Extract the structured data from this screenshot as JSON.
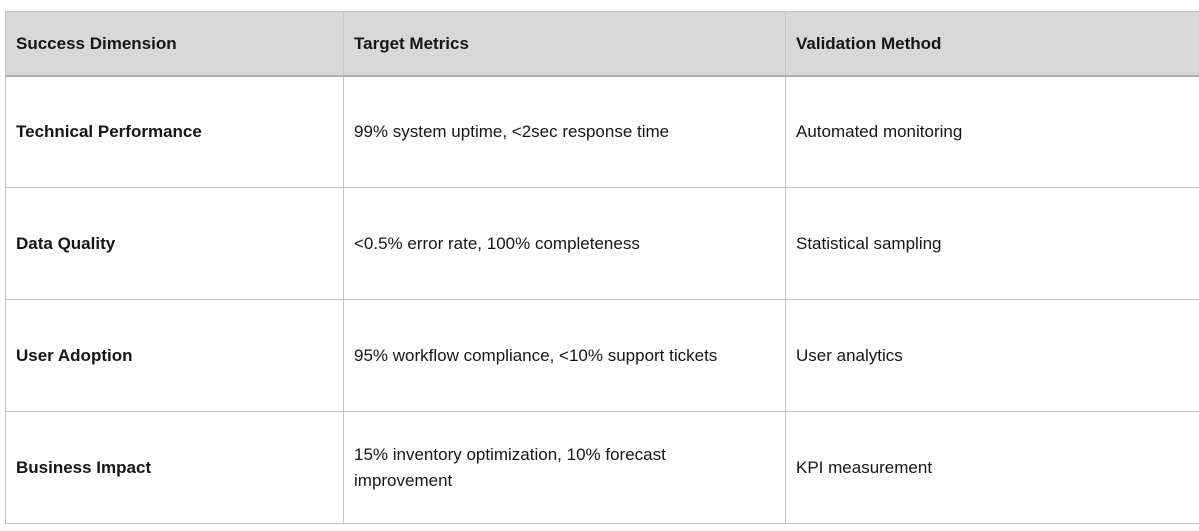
{
  "table": {
    "columns": [
      {
        "label": "Success Dimension"
      },
      {
        "label": "Target Metrics"
      },
      {
        "label": "Validation Method"
      }
    ],
    "rows": [
      {
        "dimension": "Technical Performance",
        "metrics": "99% system uptime, <2sec response time",
        "validation": "Automated monitoring"
      },
      {
        "dimension": "Data Quality",
        "metrics": "<0.5% error rate, 100% completeness",
        "validation": "Statistical sampling"
      },
      {
        "dimension": "User Adoption",
        "metrics": "95% workflow compliance, <10% support tickets",
        "validation": "User analytics"
      },
      {
        "dimension": "Business Impact",
        "metrics": "15% inventory optimization, 10% forecast improvement",
        "validation": "KPI measurement"
      }
    ],
    "colors": {
      "header_bg": "#d8d8d8",
      "border": "#c6c6c6",
      "header_border_bottom": "#aeaeae",
      "text": "#161616"
    }
  }
}
